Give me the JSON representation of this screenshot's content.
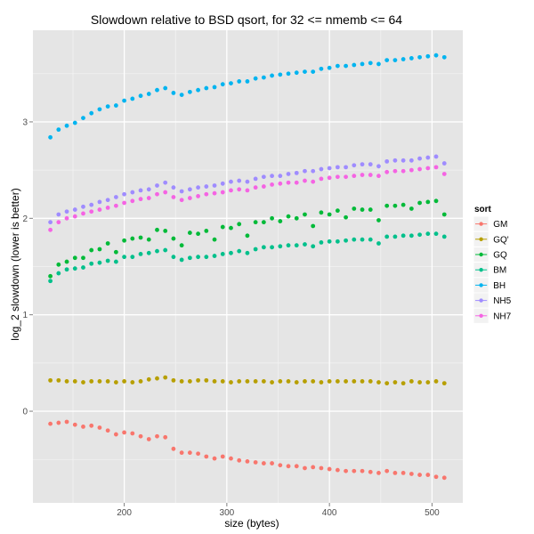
{
  "chart_data": {
    "type": "scatter",
    "title": "Slowdown relative to BSD qsort, for 32 <= nmemb <= 64",
    "xlabel": "size (bytes)",
    "ylabel": "log_2 slowdown (lower is better)",
    "xlim": [
      111,
      530
    ],
    "ylim": [
      -0.95,
      3.95
    ],
    "xticks": [
      200,
      300,
      400,
      500
    ],
    "yticks": [
      0,
      1,
      2,
      3
    ],
    "grid": true,
    "legend": {
      "title": "sort",
      "position": "right"
    },
    "x": [
      128,
      136,
      144,
      152,
      160,
      168,
      176,
      184,
      192,
      200,
      208,
      216,
      224,
      232,
      240,
      248,
      256,
      264,
      272,
      280,
      288,
      296,
      304,
      312,
      320,
      328,
      336,
      344,
      352,
      360,
      368,
      376,
      384,
      392,
      400,
      408,
      416,
      424,
      432,
      440,
      448,
      456,
      464,
      472,
      480,
      488,
      496,
      504,
      512
    ],
    "series": [
      {
        "name": "GM",
        "color": "#F8766D",
        "values": [
          -0.13,
          -0.12,
          -0.11,
          -0.14,
          -0.16,
          -0.15,
          -0.17,
          -0.2,
          -0.24,
          -0.22,
          -0.23,
          -0.26,
          -0.29,
          -0.26,
          -0.27,
          -0.39,
          -0.43,
          -0.43,
          -0.44,
          -0.47,
          -0.49,
          -0.47,
          -0.49,
          -0.51,
          -0.52,
          -0.53,
          -0.54,
          -0.54,
          -0.56,
          -0.57,
          -0.57,
          -0.59,
          -0.58,
          -0.59,
          -0.6,
          -0.61,
          -0.62,
          -0.62,
          -0.62,
          -0.63,
          -0.64,
          -0.62,
          -0.64,
          -0.64,
          -0.65,
          -0.66,
          -0.66,
          -0.68,
          -0.69
        ]
      },
      {
        "name": "GQ'",
        "color": "#B79F00",
        "values": [
          0.32,
          0.32,
          0.31,
          0.31,
          0.3,
          0.31,
          0.31,
          0.31,
          0.3,
          0.31,
          0.3,
          0.31,
          0.33,
          0.34,
          0.35,
          0.32,
          0.31,
          0.31,
          0.32,
          0.32,
          0.31,
          0.31,
          0.3,
          0.31,
          0.31,
          0.31,
          0.31,
          0.3,
          0.31,
          0.31,
          0.3,
          0.31,
          0.31,
          0.3,
          0.31,
          0.31,
          0.31,
          0.31,
          0.31,
          0.31,
          0.3,
          0.29,
          0.3,
          0.29,
          0.31,
          0.3,
          0.3,
          0.31,
          0.29
        ]
      },
      {
        "name": "GQ",
        "color": "#00BA38",
        "values": [
          1.4,
          1.52,
          1.55,
          1.59,
          1.59,
          1.67,
          1.68,
          1.74,
          1.65,
          1.77,
          1.79,
          1.8,
          1.78,
          1.88,
          1.87,
          1.79,
          1.72,
          1.85,
          1.84,
          1.87,
          1.78,
          1.91,
          1.9,
          1.94,
          1.82,
          1.96,
          1.96,
          2.0,
          1.97,
          2.02,
          2.0,
          2.04,
          1.92,
          2.06,
          2.04,
          2.08,
          2.01,
          2.1,
          2.09,
          2.09,
          1.98,
          2.13,
          2.13,
          2.14,
          2.1,
          2.16,
          2.17,
          2.18,
          2.04
        ]
      },
      {
        "name": "BM",
        "color": "#00C08B",
        "values": [
          1.35,
          1.43,
          1.47,
          1.48,
          1.49,
          1.53,
          1.54,
          1.56,
          1.55,
          1.6,
          1.6,
          1.63,
          1.64,
          1.66,
          1.67,
          1.6,
          1.57,
          1.59,
          1.6,
          1.6,
          1.61,
          1.63,
          1.64,
          1.66,
          1.64,
          1.68,
          1.7,
          1.7,
          1.71,
          1.72,
          1.72,
          1.73,
          1.71,
          1.75,
          1.76,
          1.76,
          1.77,
          1.78,
          1.78,
          1.78,
          1.74,
          1.81,
          1.81,
          1.82,
          1.82,
          1.83,
          1.84,
          1.84,
          1.81
        ]
      },
      {
        "name": "BH",
        "color": "#00B4F0",
        "values": [
          2.84,
          2.92,
          2.96,
          2.99,
          3.04,
          3.09,
          3.13,
          3.16,
          3.17,
          3.22,
          3.24,
          3.27,
          3.29,
          3.33,
          3.35,
          3.3,
          3.28,
          3.31,
          3.33,
          3.35,
          3.36,
          3.39,
          3.4,
          3.42,
          3.42,
          3.45,
          3.46,
          3.48,
          3.49,
          3.5,
          3.51,
          3.52,
          3.52,
          3.55,
          3.56,
          3.58,
          3.58,
          3.59,
          3.6,
          3.61,
          3.6,
          3.64,
          3.64,
          3.65,
          3.66,
          3.67,
          3.68,
          3.69,
          3.67
        ]
      },
      {
        "name": "NH5",
        "color": "#9F8CFF",
        "values": [
          1.96,
          2.04,
          2.07,
          2.09,
          2.12,
          2.14,
          2.17,
          2.19,
          2.22,
          2.25,
          2.27,
          2.29,
          2.3,
          2.34,
          2.37,
          2.32,
          2.28,
          2.3,
          2.32,
          2.33,
          2.34,
          2.36,
          2.38,
          2.39,
          2.38,
          2.41,
          2.43,
          2.44,
          2.44,
          2.46,
          2.47,
          2.49,
          2.49,
          2.51,
          2.52,
          2.53,
          2.53,
          2.55,
          2.56,
          2.56,
          2.54,
          2.59,
          2.6,
          2.6,
          2.6,
          2.62,
          2.63,
          2.64,
          2.57
        ]
      },
      {
        "name": "NH7",
        "color": "#F564E3",
        "values": [
          1.88,
          1.96,
          2.0,
          2.02,
          2.05,
          2.07,
          2.09,
          2.11,
          2.13,
          2.16,
          2.18,
          2.2,
          2.21,
          2.25,
          2.27,
          2.22,
          2.19,
          2.21,
          2.23,
          2.25,
          2.26,
          2.27,
          2.29,
          2.3,
          2.29,
          2.32,
          2.33,
          2.35,
          2.36,
          2.37,
          2.37,
          2.39,
          2.38,
          2.41,
          2.42,
          2.43,
          2.43,
          2.44,
          2.45,
          2.45,
          2.44,
          2.48,
          2.49,
          2.49,
          2.5,
          2.51,
          2.52,
          2.53,
          2.46
        ]
      }
    ]
  }
}
